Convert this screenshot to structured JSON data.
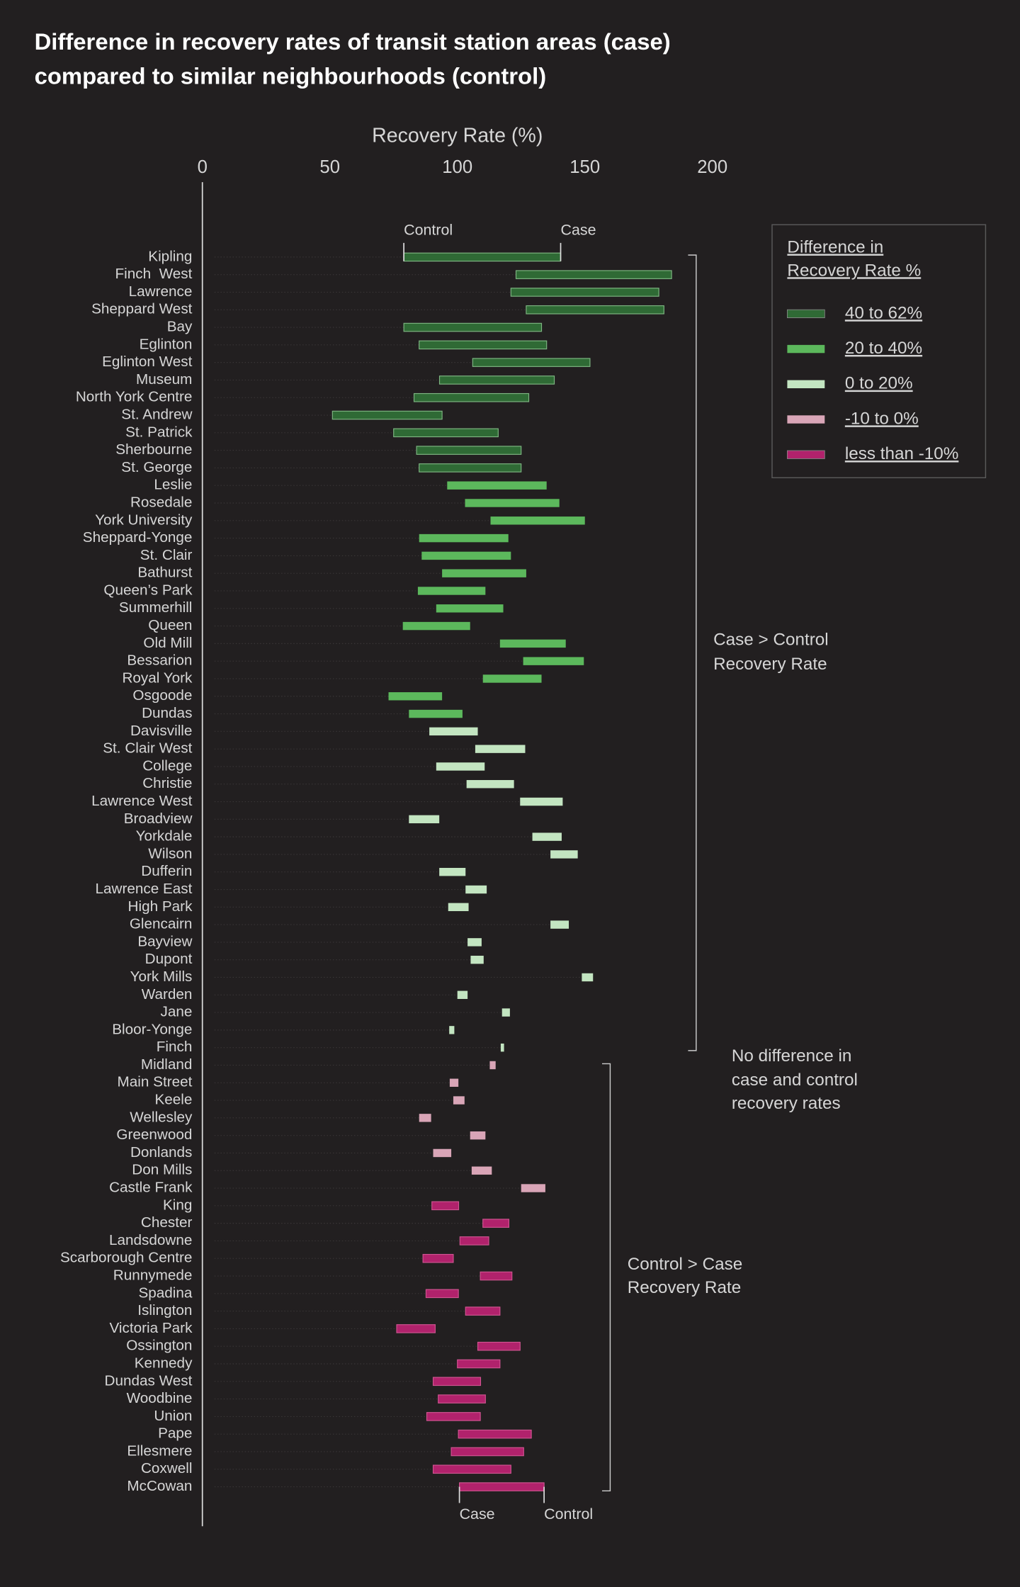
{
  "chart_data": {
    "type": "range",
    "title": [
      "Difference in recovery rates of transit station areas (case)",
      "compared to similar neighbourhoods (control)"
    ],
    "x_label": "Recovery Rate (%)",
    "xlim": [
      0,
      200
    ],
    "xticks": [
      0,
      50,
      100,
      150,
      200
    ],
    "categories": [
      "Kipling",
      "Finch  West",
      "Lawrence",
      "Sheppard West",
      "Bay",
      "Eglinton",
      "Eglinton West",
      "Museum",
      "North York Centre",
      "St. Andrew",
      "St. Patrick",
      "Sherbourne",
      "St. George",
      "Leslie",
      "Rosedale",
      "York University",
      "Sheppard-Yonge",
      "St. Clair",
      "Bathurst",
      "Queen’s Park",
      "Summerhill",
      "Queen",
      "Old Mill",
      "Bessarion",
      "Royal York",
      "Osgoode",
      "Dundas",
      "Davisville",
      "St. Clair West",
      "College",
      "Christie",
      "Lawrence West",
      "Broadview",
      "Yorkdale",
      "Wilson",
      "Dufferin",
      "Lawrence East",
      "High Park",
      "Glencairn",
      "Bayview",
      "Dupont",
      "York Mills",
      "Warden",
      "Jane",
      "Bloor-Yonge",
      "Finch",
      "Midland",
      "Main Street",
      "Keele",
      "Wellesley",
      "Greenwood",
      "Donlands",
      "Don Mills",
      "Castle Frank",
      "King",
      "Chester",
      "Landsdowne",
      "Scarborough Centre",
      "Runnymede",
      "Spadina",
      "Islington",
      "Victoria Park",
      "Ossington",
      "Kennedy",
      "Dundas West",
      "Woodbine",
      "Union",
      "Pape",
      "Ellesmere",
      "Coxwell",
      "McCowan"
    ],
    "series": [
      {
        "name": "Control",
        "values": [
          79,
          123,
          121,
          127,
          79,
          85,
          106,
          93,
          83,
          51,
          75,
          84,
          85,
          96,
          103,
          113,
          85,
          86,
          94,
          84.5,
          91.7,
          78.6,
          116.7,
          125.8,
          110,
          73,
          81,
          89,
          107,
          91.7,
          103.6,
          124.6,
          81,
          129.4,
          136.5,
          92.9,
          103.2,
          96.4,
          136.5,
          104,
          105.2,
          148.8,
          100,
          117.5,
          96.8,
          117,
          115,
          100.4,
          102.8,
          89.7,
          111,
          97.6,
          113.5,
          134.5,
          100.5,
          120.2,
          112.3,
          98.4,
          121.4,
          100.4,
          116.7,
          91.3,
          124.6,
          116.7,
          109.1,
          111,
          109,
          129,
          126,
          121,
          134
        ]
      },
      {
        "name": "Case",
        "values": [
          140.5,
          184,
          179,
          181,
          133,
          135,
          152,
          138,
          128,
          94,
          116,
          125,
          125,
          135,
          140,
          150,
          120,
          121,
          127,
          111,
          118,
          105,
          142.5,
          149.6,
          133,
          94,
          102,
          108,
          126.6,
          110.7,
          122.2,
          141.3,
          92.9,
          140.9,
          147.2,
          103.2,
          111.5,
          104.4,
          143.7,
          109.5,
          110.3,
          153.2,
          104,
          120.6,
          98.8,
          118.3,
          112.7,
          97,
          98.4,
          85,
          105,
          90.5,
          105.6,
          125,
          90,
          110,
          101,
          86.5,
          109,
          87.7,
          103.2,
          76.2,
          108,
          100,
          90.5,
          92.5,
          88,
          100.4,
          97.6,
          90.5,
          100.8
        ]
      }
    ],
    "legend": {
      "title": [
        "Difference in",
        "Recovery Rate %"
      ],
      "items": [
        {
          "label": "40 to 62%",
          "min": 40,
          "color": "#2f6a35"
        },
        {
          "label": "20 to 40%",
          "min": 20,
          "color": "#5cb85c"
        },
        {
          "label": "0 to 20%",
          "min": 0,
          "color": "#c3e5c1"
        },
        {
          "label": "-10 to 0%",
          "min": -10,
          "color": "#d9a5b7"
        },
        {
          "label": "less than -10%",
          "color": "#b1226c"
        }
      ]
    },
    "annotations": [
      {
        "text": [
          "Case > Control",
          "Recovery Rate"
        ]
      },
      {
        "text": [
          "No difference in",
          "case and control",
          "recovery rates"
        ]
      },
      {
        "text": [
          "Control > Case",
          "Recovery Rate"
        ]
      }
    ]
  }
}
